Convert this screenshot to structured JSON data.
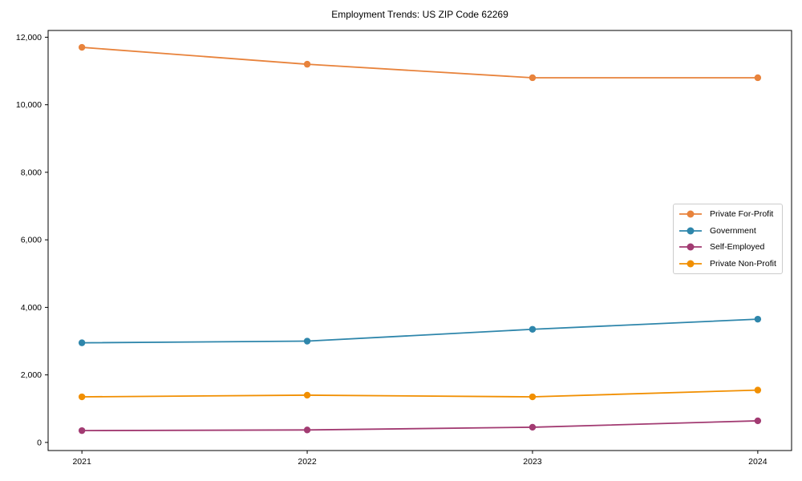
{
  "chart_data": {
    "type": "line",
    "title": "Employment Trends: US ZIP Code 62269",
    "xlabel": "",
    "ylabel": "",
    "x": [
      2021,
      2022,
      2023,
      2024
    ],
    "x_tick_labels": [
      "2021",
      "2022",
      "2023",
      "2024"
    ],
    "y_ticks": [
      0,
      2000,
      4000,
      6000,
      8000,
      10000,
      12000
    ],
    "y_tick_labels": [
      "0",
      "2,000",
      "4,000",
      "6,000",
      "8,000",
      "10,000",
      "12,000"
    ],
    "xlim": [
      2020.85,
      2024.15
    ],
    "ylim": [
      -240,
      12200
    ],
    "grid": false,
    "legend_position": "center-right",
    "series": [
      {
        "name": "Private For-Profit",
        "color": "#E8833C",
        "values": [
          11700,
          11200,
          10800,
          10800
        ]
      },
      {
        "name": "Government",
        "color": "#2E86AB",
        "values": [
          2950,
          3000,
          3350,
          3650
        ]
      },
      {
        "name": "Self-Employed",
        "color": "#A23B72",
        "values": [
          350,
          370,
          450,
          640
        ]
      },
      {
        "name": "Private Non-Profit",
        "color": "#F18F01",
        "values": [
          1350,
          1400,
          1350,
          1550
        ]
      }
    ]
  }
}
